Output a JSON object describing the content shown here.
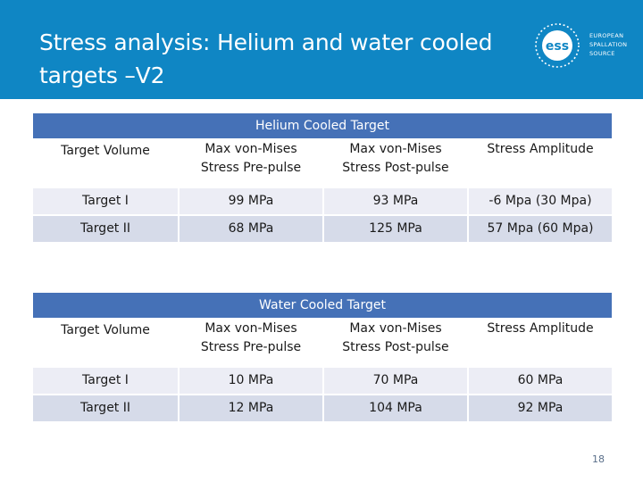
{
  "header": {
    "title_line1": "Stress analysis: Helium and water cooled",
    "title_line2": "targets –V2",
    "logo_mark": "ess",
    "logo_text": [
      "EUROPEAN",
      "SPALLATION",
      "SOURCE"
    ],
    "background": "#0f86c4"
  },
  "helium": {
    "caption": "Helium Cooled Target",
    "headers": [
      "Target Volume",
      "Max von-Mises Stress Pre-pulse",
      "Max von-Mises Stress Post-pulse",
      "Stress Amplitude"
    ],
    "headers_split": [
      [
        "Target Volume"
      ],
      [
        "Max von-Mises",
        "Stress Pre-pulse"
      ],
      [
        "Max von-Mises",
        "Stress Post-pulse"
      ],
      [
        "Stress Amplitude"
      ]
    ],
    "rows": [
      [
        "Target I",
        "99 MPa",
        "93 MPa",
        "-6 Mpa (30 Mpa)"
      ],
      [
        "Target II",
        "68 MPa",
        "125 MPa",
        "57 Mpa (60 Mpa)"
      ]
    ]
  },
  "water": {
    "caption": "Water Cooled Target",
    "headers": [
      "Target Volume",
      "Max von-Mises Stress Pre-pulse",
      "Max von-Mises Stress Post-pulse",
      "Stress Amplitude"
    ],
    "headers_split": [
      [
        "Target Volume"
      ],
      [
        "Max von-Mises",
        "Stress Pre-pulse"
      ],
      [
        "Max von-Mises",
        "Stress Post-pulse"
      ],
      [
        "Stress Amplitude"
      ]
    ],
    "rows": [
      [
        "Target I",
        "10 MPa",
        "70 MPa",
        "60 MPa"
      ],
      [
        "Target II",
        "12 MPa",
        "104 MPa",
        "92 MPa"
      ]
    ]
  },
  "footer": {
    "page_number": "18"
  },
  "colors": {
    "header_blue": "#0f86c4",
    "table_caption": "#4571b7",
    "row_light": "#ecedf5",
    "row_dark": "#d6dbe9"
  }
}
